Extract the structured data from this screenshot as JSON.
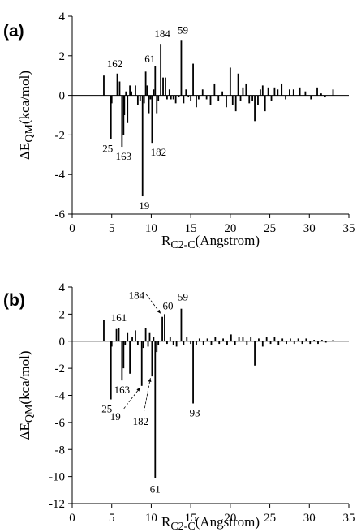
{
  "chart_data": [
    {
      "type": "bar",
      "panel_label": "(a)",
      "xlabel": "R",
      "xlabel_sub": "C2-C",
      "xlabel_unit": "(Angstrom)",
      "ylabel": "ΔE",
      "ylabel_sub": "QM",
      "ylabel_unit": "(kca/mol)",
      "xlim": [
        0,
        35
      ],
      "ylim": [
        -6,
        4
      ],
      "xticks": [
        "0",
        "5",
        "10",
        "15",
        "20",
        "25",
        "30",
        "35"
      ],
      "yticks": [
        "-6",
        "-4",
        "-2",
        "0",
        "2",
        "4"
      ],
      "grid": false,
      "x": [
        4.0,
        4.9,
        5.0,
        5.7,
        6.0,
        6.3,
        6.5,
        6.6,
        6.8,
        7.0,
        7.3,
        7.5,
        8.0,
        8.3,
        8.6,
        8.9,
        9.1,
        9.3,
        9.5,
        9.7,
        9.9,
        10.1,
        10.3,
        10.5,
        10.7,
        10.9,
        11.2,
        11.5,
        11.8,
        12.0,
        12.3,
        12.5,
        12.8,
        13.1,
        13.5,
        13.8,
        14.1,
        14.4,
        14.7,
        15.0,
        15.3,
        15.7,
        16.0,
        16.5,
        17.0,
        17.5,
        18.0,
        18.5,
        19.0,
        19.5,
        20.0,
        20.3,
        20.7,
        21.0,
        21.3,
        21.6,
        22.0,
        22.4,
        22.8,
        23.1,
        23.5,
        23.8,
        24.1,
        24.4,
        24.8,
        25.2,
        25.6,
        26.0,
        26.5,
        27.0,
        27.5,
        28.0,
        28.8,
        29.5,
        30.2,
        31.0,
        31.5,
        32.0,
        33.0
      ],
      "values": [
        1.0,
        -2.2,
        -0.4,
        1.1,
        0.7,
        -2.6,
        -2.0,
        -1.0,
        0.2,
        -1.4,
        0.5,
        0.2,
        0.5,
        -0.5,
        -0.3,
        -5.1,
        -0.4,
        1.2,
        0.5,
        -0.9,
        -0.2,
        -2.4,
        0.3,
        1.5,
        -0.9,
        -0.3,
        2.6,
        0.9,
        0.9,
        -0.2,
        0.3,
        -0.2,
        -0.2,
        -0.4,
        -0.1,
        2.8,
        -0.4,
        0.3,
        -0.1,
        -0.3,
        1.6,
        -0.6,
        -0.2,
        0.3,
        -0.2,
        -0.5,
        0.6,
        -0.3,
        0.2,
        -0.6,
        1.4,
        -0.5,
        -0.8,
        1.1,
        -0.3,
        0.4,
        0.6,
        -0.4,
        -0.3,
        -1.3,
        -0.5,
        0.3,
        0.5,
        -0.8,
        0.4,
        -0.3,
        0.4,
        0.3,
        0.6,
        -0.2,
        0.3,
        0.3,
        0.4,
        0.2,
        -0.2,
        0.4,
        0.1,
        -0.1,
        0.3
      ],
      "annotations": [
        {
          "text": "162",
          "x": 5.7,
          "y": 1.1
        },
        {
          "text": "61",
          "x": 10.5,
          "y": 1.5
        },
        {
          "text": "184",
          "x": 11.2,
          "y": 2.6
        },
        {
          "text": "59",
          "x": 13.8,
          "y": 2.8
        },
        {
          "text": "25",
          "x": 4.9,
          "y": -2.2
        },
        {
          "text": "163",
          "x": 6.3,
          "y": -2.6
        },
        {
          "text": "182",
          "x": 10.1,
          "y": -2.4
        },
        {
          "text": "19",
          "x": 8.9,
          "y": -5.1
        }
      ]
    },
    {
      "type": "bar",
      "panel_label": "(b)",
      "xlabel": "R",
      "xlabel_sub": "C2-C",
      "xlabel_unit": "(Angstrom)",
      "ylabel": "ΔE",
      "ylabel_sub": "QM",
      "ylabel_unit": "(kca/mol)",
      "xlim": [
        0,
        35
      ],
      "ylim": [
        -12,
        4
      ],
      "xticks": [
        "0",
        "5",
        "10",
        "15",
        "20",
        "25",
        "30",
        "35"
      ],
      "yticks": [
        "-12",
        "-10",
        "-8",
        "-6",
        "-4",
        "-2",
        "0",
        "2",
        "4"
      ],
      "grid": false,
      "x": [
        4.0,
        4.9,
        5.0,
        5.6,
        5.9,
        6.3,
        6.5,
        6.7,
        7.0,
        7.3,
        7.6,
        8.0,
        8.3,
        8.8,
        9.0,
        9.3,
        9.6,
        9.8,
        10.1,
        10.3,
        10.5,
        10.7,
        10.9,
        11.4,
        11.7,
        12.0,
        12.4,
        12.8,
        13.2,
        13.8,
        14.1,
        14.5,
        15.0,
        15.3,
        15.7,
        16.1,
        16.6,
        17.1,
        17.6,
        18.1,
        18.6,
        19.1,
        19.6,
        20.1,
        20.6,
        21.1,
        21.6,
        22.1,
        22.6,
        23.1,
        23.6,
        24.1,
        24.6,
        25.1,
        25.6,
        26.1,
        26.6,
        27.1,
        27.6,
        28.1,
        28.6,
        29.1,
        29.6,
        30.1,
        30.6,
        31.1,
        31.6,
        32.1,
        33.0
      ],
      "values": [
        1.6,
        -4.3,
        -0.4,
        0.9,
        1.0,
        -2.9,
        -2.0,
        -0.3,
        0.6,
        -2.4,
        0.3,
        0.8,
        -0.3,
        -3.3,
        -0.5,
        1.0,
        -0.4,
        0.6,
        -2.6,
        0.3,
        -10.1,
        -0.8,
        -0.3,
        1.8,
        2.0,
        -0.2,
        0.3,
        -0.3,
        -0.4,
        2.4,
        -0.3,
        0.3,
        -0.2,
        -4.6,
        -0.3,
        0.2,
        -0.3,
        0.2,
        -0.3,
        0.3,
        -0.2,
        0.2,
        -0.3,
        0.5,
        -0.3,
        0.3,
        0.3,
        -0.3,
        0.3,
        -1.8,
        0.2,
        -0.4,
        0.3,
        -0.2,
        0.3,
        -0.3,
        0.2,
        -0.2,
        0.2,
        -0.2,
        0.2,
        -0.2,
        0.2,
        -0.2,
        0.1,
        -0.2,
        0.1,
        -0.1,
        0.1
      ],
      "annotations": [
        {
          "text": "161",
          "x": 5.9,
          "y": 1.0,
          "dx": 0,
          "dy": 0
        },
        {
          "text": "184",
          "x": 11.4,
          "y": 1.8,
          "dx": 0,
          "dy": 0
        },
        {
          "text": "60",
          "x": 11.7,
          "y": 2.0,
          "dx": 0,
          "dy": 0
        },
        {
          "text": "59",
          "x": 13.8,
          "y": 2.4,
          "dx": 0,
          "dy": 0
        },
        {
          "text": "25",
          "x": 4.9,
          "y": -4.3
        },
        {
          "text": "163",
          "x": 6.3,
          "y": -2.9
        },
        {
          "text": "19",
          "x": 8.8,
          "y": -3.3
        },
        {
          "text": "182",
          "x": 10.1,
          "y": -2.6
        },
        {
          "text": "61",
          "x": 10.5,
          "y": -10.1
        },
        {
          "text": "93",
          "x": 15.3,
          "y": -4.6
        }
      ]
    }
  ]
}
